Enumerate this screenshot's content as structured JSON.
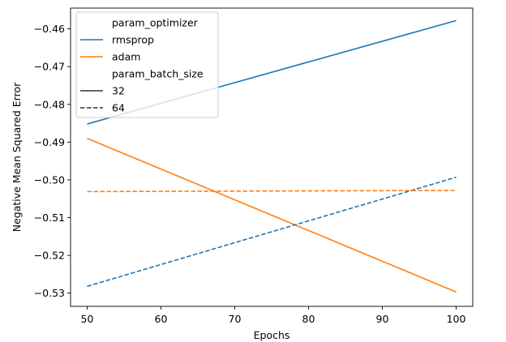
{
  "chart_data": {
    "type": "line",
    "title": "",
    "xlabel": "Epochs",
    "ylabel": "Negative Mean Squared Error",
    "xlim": [
      47.75,
      102.25
    ],
    "ylim": [
      -0.5335,
      -0.4545
    ],
    "x_ticks": [
      50,
      60,
      70,
      80,
      90,
      100
    ],
    "y_ticks": [
      -0.46,
      -0.47,
      -0.48,
      -0.49,
      -0.5,
      -0.51,
      -0.52,
      -0.53
    ],
    "x_tick_labels": [
      "50",
      "60",
      "70",
      "80",
      "90",
      "100"
    ],
    "y_tick_labels": [
      "−0.46",
      "−0.47",
      "−0.48",
      "−0.49",
      "−0.50",
      "−0.51",
      "−0.52",
      "−0.53"
    ],
    "grid": false,
    "legend_position": "top-left",
    "colors": {
      "rmsprop": "#1f77b4",
      "adam": "#ff7f0e",
      "neutral": "#333333"
    },
    "series": [
      {
        "optimizer": "rmsprop",
        "batch_size": "32",
        "style": "solid",
        "color": "#1f77b4",
        "x": [
          50,
          100
        ],
        "y": [
          -0.4852,
          -0.4578
        ]
      },
      {
        "optimizer": "adam",
        "batch_size": "32",
        "style": "solid",
        "color": "#ff7f0e",
        "x": [
          50,
          100
        ],
        "y": [
          -0.489,
          -0.5297
        ]
      },
      {
        "optimizer": "rmsprop",
        "batch_size": "64",
        "style": "dashed",
        "color": "#1f77b4",
        "x": [
          50,
          100
        ],
        "y": [
          -0.5282,
          -0.4993
        ]
      },
      {
        "optimizer": "adam",
        "batch_size": "64",
        "style": "dashed",
        "color": "#ff7f0e",
        "x": [
          50,
          100
        ],
        "y": [
          -0.5031,
          -0.5028
        ]
      }
    ],
    "legend": {
      "entries": [
        {
          "kind": "header",
          "label": "param_optimizer"
        },
        {
          "kind": "line",
          "label": "rmsprop",
          "color": "#1f77b4",
          "style": "solid"
        },
        {
          "kind": "line",
          "label": "adam",
          "color": "#ff7f0e",
          "style": "solid"
        },
        {
          "kind": "header",
          "label": "param_batch_size"
        },
        {
          "kind": "line",
          "label": "32",
          "color": "#333333",
          "style": "solid"
        },
        {
          "kind": "line",
          "label": "64",
          "color": "#333333",
          "style": "dashed"
        }
      ]
    }
  }
}
